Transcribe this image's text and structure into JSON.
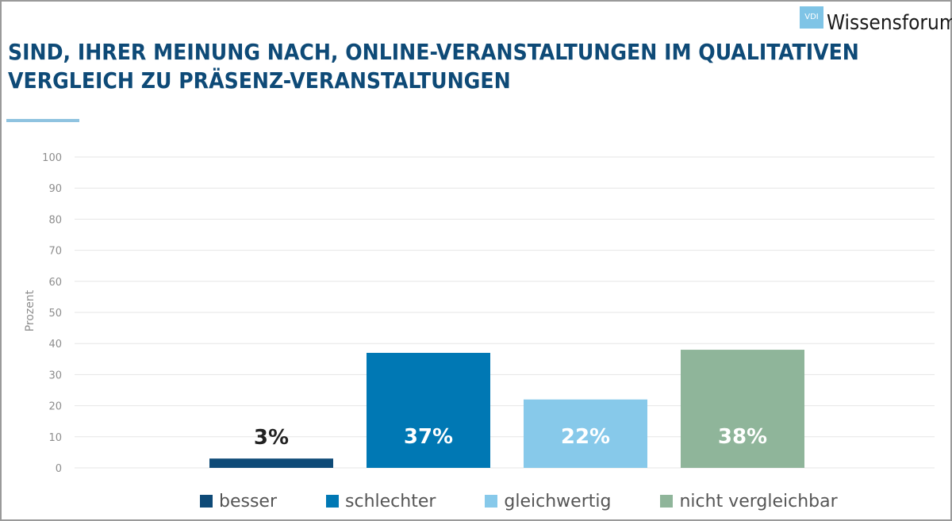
{
  "logo": {
    "mark": "VDI",
    "name": "Wissensforum"
  },
  "colors": {
    "besser": "#0e4a77",
    "schlechter": "#0078b4",
    "gleichwertig": "#87c9ea",
    "nicht_vergleichbar": "#8fb59a",
    "title": "#0e4a77",
    "grid": "#e6e6e6",
    "axis_text": "#8d8d8d"
  },
  "chart_data": {
    "type": "bar",
    "title": "SIND, IHRER MEINUNG NACH, ONLINE-VERANSTALTUNGEN IM QUALITATIVEN VERGLEICH ZU PRÄSENZ-VERANSTALTUNGEN",
    "ylabel": "Prozent",
    "xlabel": "",
    "ylim": [
      0,
      100
    ],
    "yticks": [
      0,
      10,
      20,
      30,
      40,
      50,
      60,
      70,
      80,
      90,
      100
    ],
    "grid": true,
    "legend_position": "bottom",
    "categories": [
      "besser",
      "schlechter",
      "gleichwertig",
      "nicht vergleichbar"
    ],
    "values": [
      3,
      37,
      22,
      38
    ],
    "data_labels": [
      "3%",
      "37%",
      "22%",
      "38%"
    ]
  }
}
